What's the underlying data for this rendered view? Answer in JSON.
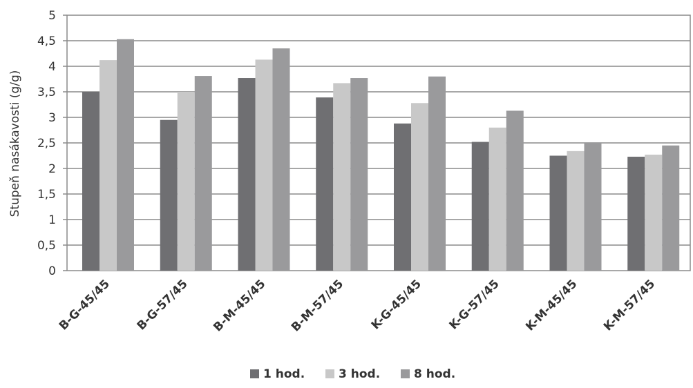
{
  "chart_data": {
    "type": "bar",
    "title": "",
    "xlabel": "",
    "ylabel": "Stupeň nasákavosti (g/g)",
    "ylim": [
      0,
      5
    ],
    "yticks": [
      0,
      0.5,
      1,
      1.5,
      2,
      2.5,
      3,
      3.5,
      4,
      4.5,
      5
    ],
    "ytick_labels": [
      "0",
      "0,5",
      "1",
      "1,5",
      "2",
      "2,5",
      "3",
      "3,5",
      "4",
      "4,5",
      "5"
    ],
    "grid": true,
    "legend_position": "bottom",
    "categories": [
      "B-G-45/45",
      "B-G-57/45",
      "B-M-45/45",
      "B-M-57/45",
      "K-G-45/45",
      "K-G-57/45",
      "K-M-45/45",
      "K-M-57/45"
    ],
    "series": [
      {
        "name": "1 hod.",
        "color": "#6f6f72",
        "values": [
          3.5,
          2.95,
          3.77,
          3.39,
          2.88,
          2.52,
          2.25,
          2.23
        ]
      },
      {
        "name": "3 hod.",
        "color": "#c8c8c8",
        "values": [
          4.12,
          3.5,
          4.13,
          3.67,
          3.28,
          2.8,
          2.34,
          2.27
        ]
      },
      {
        "name": "8 hod.",
        "color": "#9a9a9c",
        "values": [
          4.53,
          3.81,
          4.35,
          3.77,
          3.8,
          3.13,
          2.51,
          2.45
        ]
      }
    ]
  }
}
